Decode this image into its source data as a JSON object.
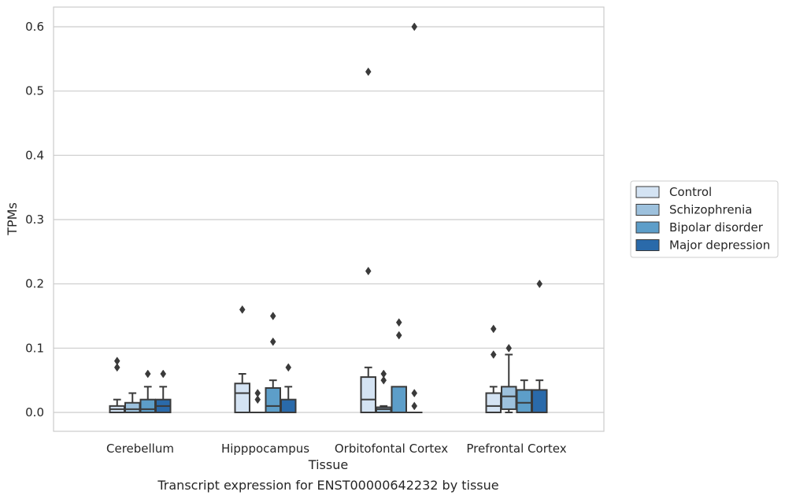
{
  "chart_data": {
    "type": "box",
    "xlabel": "Tissue",
    "ylabel": "TPMs",
    "caption": "Transcript expression for ENST00000642232 by tissue",
    "ylim": [
      -0.03,
      0.63
    ],
    "yticks": [
      0.0,
      0.1,
      0.2,
      0.3,
      0.4,
      0.5,
      0.6
    ],
    "ytick_labels": [
      "0.0",
      "0.1",
      "0.2",
      "0.3",
      "0.4",
      "0.5",
      "0.6"
    ],
    "grid": "horizontal",
    "legend_position": "right",
    "categories": [
      "Cerebellum",
      "Hipppocampus",
      "Orbitofontal Cortex",
      "Prefrontal Cortex"
    ],
    "series": [
      {
        "name": "Control",
        "color": "#d4e3f3",
        "boxes": [
          {
            "q1": 0.0,
            "median": 0.005,
            "q3": 0.01,
            "whisker_low": 0.0,
            "whisker_high": 0.02,
            "outliers": [
              0.07,
              0.08
            ]
          },
          {
            "q1": 0.0,
            "median": 0.03,
            "q3": 0.045,
            "whisker_low": 0.0,
            "whisker_high": 0.06,
            "outliers": [
              0.16
            ]
          },
          {
            "q1": 0.0,
            "median": 0.02,
            "q3": 0.055,
            "whisker_low": 0.0,
            "whisker_high": 0.07,
            "outliers": [
              0.22,
              0.53
            ]
          },
          {
            "q1": 0.0,
            "median": 0.01,
            "q3": 0.03,
            "whisker_low": 0.0,
            "whisker_high": 0.04,
            "outliers": [
              0.09,
              0.13
            ]
          }
        ]
      },
      {
        "name": "Schizophrenia",
        "color": "#9dc1dd",
        "boxes": [
          {
            "q1": 0.0,
            "median": 0.005,
            "q3": 0.015,
            "whisker_low": 0.0,
            "whisker_high": 0.03,
            "outliers": []
          },
          {
            "q1": 0.0,
            "median": 0.0,
            "q3": 0.0,
            "whisker_low": 0.0,
            "whisker_high": 0.0,
            "outliers": [
              0.02,
              0.03
            ]
          },
          {
            "q1": 0.0,
            "median": 0.005,
            "q3": 0.008,
            "whisker_low": 0.0,
            "whisker_high": 0.01,
            "outliers": [
              0.05,
              0.06
            ]
          },
          {
            "q1": 0.005,
            "median": 0.025,
            "q3": 0.04,
            "whisker_low": 0.0,
            "whisker_high": 0.09,
            "outliers": [
              0.1
            ]
          }
        ]
      },
      {
        "name": "Bipolar disorder",
        "color": "#5d9ec9",
        "boxes": [
          {
            "q1": 0.0,
            "median": 0.005,
            "q3": 0.02,
            "whisker_low": 0.0,
            "whisker_high": 0.04,
            "outliers": [
              0.06
            ]
          },
          {
            "q1": 0.0,
            "median": 0.01,
            "q3": 0.038,
            "whisker_low": 0.0,
            "whisker_high": 0.05,
            "outliers": [
              0.11,
              0.15
            ]
          },
          {
            "q1": 0.0,
            "median": 0.0,
            "q3": 0.04,
            "whisker_low": 0.0,
            "whisker_high": 0.04,
            "outliers": [
              0.12,
              0.14
            ]
          },
          {
            "q1": 0.0,
            "median": 0.015,
            "q3": 0.035,
            "whisker_low": 0.0,
            "whisker_high": 0.05,
            "outliers": []
          }
        ]
      },
      {
        "name": "Major depression",
        "color": "#2a6aaa",
        "boxes": [
          {
            "q1": 0.0,
            "median": 0.01,
            "q3": 0.02,
            "whisker_low": 0.0,
            "whisker_high": 0.04,
            "outliers": [
              0.06
            ]
          },
          {
            "q1": 0.0,
            "median": 0.0,
            "q3": 0.02,
            "whisker_low": 0.0,
            "whisker_high": 0.04,
            "outliers": [
              0.07
            ]
          },
          {
            "q1": 0.0,
            "median": 0.0,
            "q3": 0.0,
            "whisker_low": 0.0,
            "whisker_high": 0.0,
            "outliers": [
              0.01,
              0.03,
              0.6
            ]
          },
          {
            "q1": 0.0,
            "median": 0.0,
            "q3": 0.035,
            "whisker_low": 0.0,
            "whisker_high": 0.05,
            "outliers": [
              0.2
            ]
          }
        ]
      }
    ]
  }
}
